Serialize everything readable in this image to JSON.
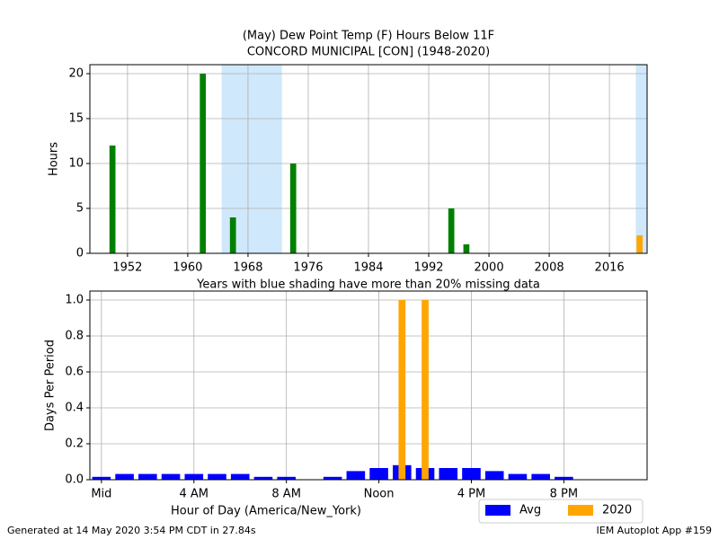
{
  "chart_data": [
    {
      "type": "bar",
      "title": "(May) Dew Point Temp (F) Hours Below 11F",
      "subtitle": "CONCORD MUNICIPAL [CON] (1948-2020)",
      "ylabel": "Hours",
      "annotation": "Years with blue shading have more than 20% missing data",
      "x": [
        1950,
        1962,
        1966,
        1974,
        1995,
        1997,
        2020
      ],
      "values": [
        12,
        20,
        4,
        10,
        5,
        1,
        2
      ],
      "colors": [
        "#008000",
        "#008000",
        "#008000",
        "#008000",
        "#008000",
        "#008000",
        "#ffa500"
      ],
      "shaded_ranges": [
        [
          1964.5,
          1972.5
        ],
        [
          2019.5,
          2021
        ]
      ],
      "shade_color": "#d0e8fb",
      "xlim": [
        1947,
        2021
      ],
      "ylim": [
        0,
        21
      ],
      "xticks": [
        1952,
        1960,
        1968,
        1976,
        1984,
        1992,
        2000,
        2008,
        2016
      ],
      "yticks": [
        0,
        5,
        10,
        15,
        20
      ],
      "grid": true
    },
    {
      "type": "bar",
      "xlabel": "Hour of Day (America/New_York)",
      "ylabel": "Days Per Period",
      "x": [
        0,
        1,
        2,
        3,
        4,
        5,
        6,
        7,
        8,
        9,
        10,
        11,
        12,
        13,
        14,
        15,
        16,
        17,
        18,
        19,
        20,
        21,
        22,
        23
      ],
      "series": [
        {
          "name": "Avg",
          "color": "#0000ff",
          "width": 0.8,
          "values": [
            0.016,
            0.032,
            0.032,
            0.032,
            0.032,
            0.032,
            0.032,
            0.016,
            0.016,
            0,
            0.016,
            0.048,
            0.065,
            0.081,
            0.065,
            0.065,
            0.065,
            0.048,
            0.032,
            0.032,
            0.016,
            0,
            0,
            0
          ]
        },
        {
          "name": "2020",
          "color": "#ffa500",
          "width": 0.3,
          "values": [
            0,
            0,
            0,
            0,
            0,
            0,
            0,
            0,
            0,
            0,
            0,
            0,
            0,
            1,
            1,
            0,
            0,
            0,
            0,
            0,
            0,
            0,
            0,
            0
          ]
        }
      ],
      "xlim": [
        -0.5,
        23.6
      ],
      "ylim": [
        0,
        1.05
      ],
      "xticks": [
        {
          "value": 0,
          "label": "Mid"
        },
        {
          "value": 4,
          "label": "4 AM"
        },
        {
          "value": 8,
          "label": "8 AM"
        },
        {
          "value": 12,
          "label": "Noon"
        },
        {
          "value": 16,
          "label": "4 PM"
        },
        {
          "value": 20,
          "label": "8 PM"
        }
      ],
      "yticks": [
        {
          "value": 0,
          "label": "0.0"
        },
        0.2,
        0.4,
        0.6,
        0.8,
        {
          "value": 1,
          "label": "1.0"
        }
      ],
      "grid": true,
      "legend": "lower-right-outside"
    }
  ],
  "footer": {
    "left": "Generated at 14 May 2020 3:54 PM CDT in 27.84s",
    "right": "IEM Autoplot App #159"
  }
}
